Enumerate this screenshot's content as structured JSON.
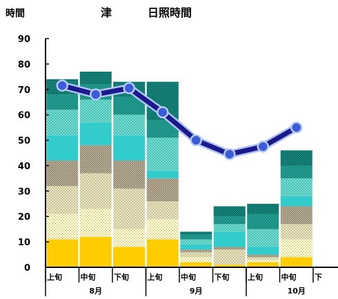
{
  "header": {
    "y_unit": "時間",
    "station": "津",
    "title": "日照時間"
  },
  "chart_data": {
    "type": "bar",
    "title": "日照時間",
    "station": "津",
    "ylabel": "時間",
    "ylim": [
      0,
      90
    ],
    "yticks": [
      0,
      10,
      20,
      30,
      40,
      50,
      60,
      70,
      80,
      90
    ],
    "grid": false,
    "categories": [
      "上旬",
      "中旬",
      "下旬",
      "上旬",
      "中旬",
      "下旬",
      "上旬",
      "中旬",
      "下旬"
    ],
    "visible_categories": [
      "上旬",
      "中旬",
      "下旬",
      "上旬",
      "中旬",
      "下旬",
      "上旬",
      "中旬",
      "下"
    ],
    "months": [
      {
        "label": "8月",
        "span": [
          0,
          2
        ]
      },
      {
        "label": "9月",
        "span": [
          3,
          5
        ]
      },
      {
        "label": "10月",
        "span": [
          6,
          8
        ]
      }
    ],
    "bands": [
      {
        "fill": "#FFCC00",
        "pattern": "solid"
      },
      {
        "fill": "#FFF9C8",
        "pattern": "dots"
      },
      {
        "fill": "#E5DFB8",
        "pattern": "dots"
      },
      {
        "fill": "#BFB49A",
        "pattern": "crosshatch"
      },
      {
        "fill": "#33CCCC",
        "pattern": "solid"
      },
      {
        "fill": "#66D8CC",
        "pattern": "dots"
      },
      {
        "fill": "#1E9A8E",
        "pattern": "dots"
      },
      {
        "fill": "#0E8C82",
        "pattern": "crosshatch"
      }
    ],
    "band_edges": [
      [
        0,
        11,
        21,
        32,
        42,
        52,
        62,
        68,
        74
      ],
      [
        0,
        12,
        23,
        37,
        48,
        57,
        66,
        72,
        77
      ],
      [
        0,
        8,
        15,
        31,
        42,
        52,
        60,
        67,
        73
      ],
      [
        0,
        11,
        19,
        26,
        35,
        38,
        51,
        58,
        73
      ],
      [
        0,
        2,
        4,
        6,
        7,
        9,
        11,
        13,
        14
      ],
      [
        0,
        1,
        1,
        7,
        8,
        14,
        17,
        20,
        24
      ],
      [
        0,
        2,
        3,
        4,
        5,
        8,
        15,
        21,
        25
      ],
      [
        0,
        4,
        11,
        17,
        24,
        28,
        35,
        40,
        46
      ],
      [
        0,
        0,
        0,
        0,
        0,
        0,
        0,
        0,
        0
      ]
    ],
    "series": [
      {
        "type": "line",
        "values": [
          71.5,
          68,
          70.5,
          61,
          50,
          44.5,
          47.5,
          55,
          null
        ],
        "color": "#1A1A8C",
        "marker_fill": "#3B5BD9"
      }
    ]
  }
}
